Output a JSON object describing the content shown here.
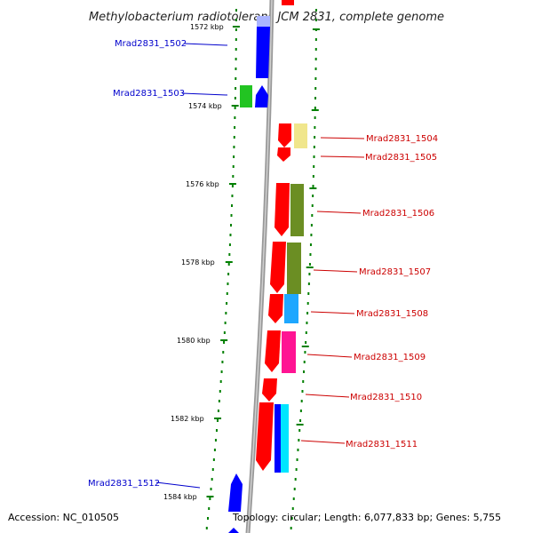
{
  "title": "Methylobacterium radiotolerans JCM 2831, complete genome",
  "accession": "Accession: NC_010505",
  "topology": "Topology: circular; Length: 6,077,833 bp; Genes: 5,755",
  "colors": {
    "forward_gene": "#0000ff",
    "reverse_gene": "#ff0000",
    "forward_label": "#0000cc",
    "reverse_label": "#cc0000",
    "tick": "#008000",
    "backbone": "#888888"
  },
  "kbp_labels": [
    "1572 kbp",
    "1574 kbp",
    "1576 kbp",
    "1578 kbp",
    "1580 kbp",
    "1582 kbp",
    "1584 kbp"
  ],
  "genes": [
    {
      "name": "Mrad2831_1502",
      "strand": "forward"
    },
    {
      "name": "Mrad2831_1503",
      "strand": "forward"
    },
    {
      "name": "Mrad2831_1504",
      "strand": "reverse"
    },
    {
      "name": "Mrad2831_1505",
      "strand": "reverse"
    },
    {
      "name": "Mrad2831_1506",
      "strand": "reverse"
    },
    {
      "name": "Mrad2831_1507",
      "strand": "reverse"
    },
    {
      "name": "Mrad2831_1508",
      "strand": "reverse"
    },
    {
      "name": "Mrad2831_1509",
      "strand": "reverse"
    },
    {
      "name": "Mrad2831_1510",
      "strand": "reverse"
    },
    {
      "name": "Mrad2831_1511",
      "strand": "reverse"
    },
    {
      "name": "Mrad2831_1512",
      "strand": "forward"
    }
  ]
}
